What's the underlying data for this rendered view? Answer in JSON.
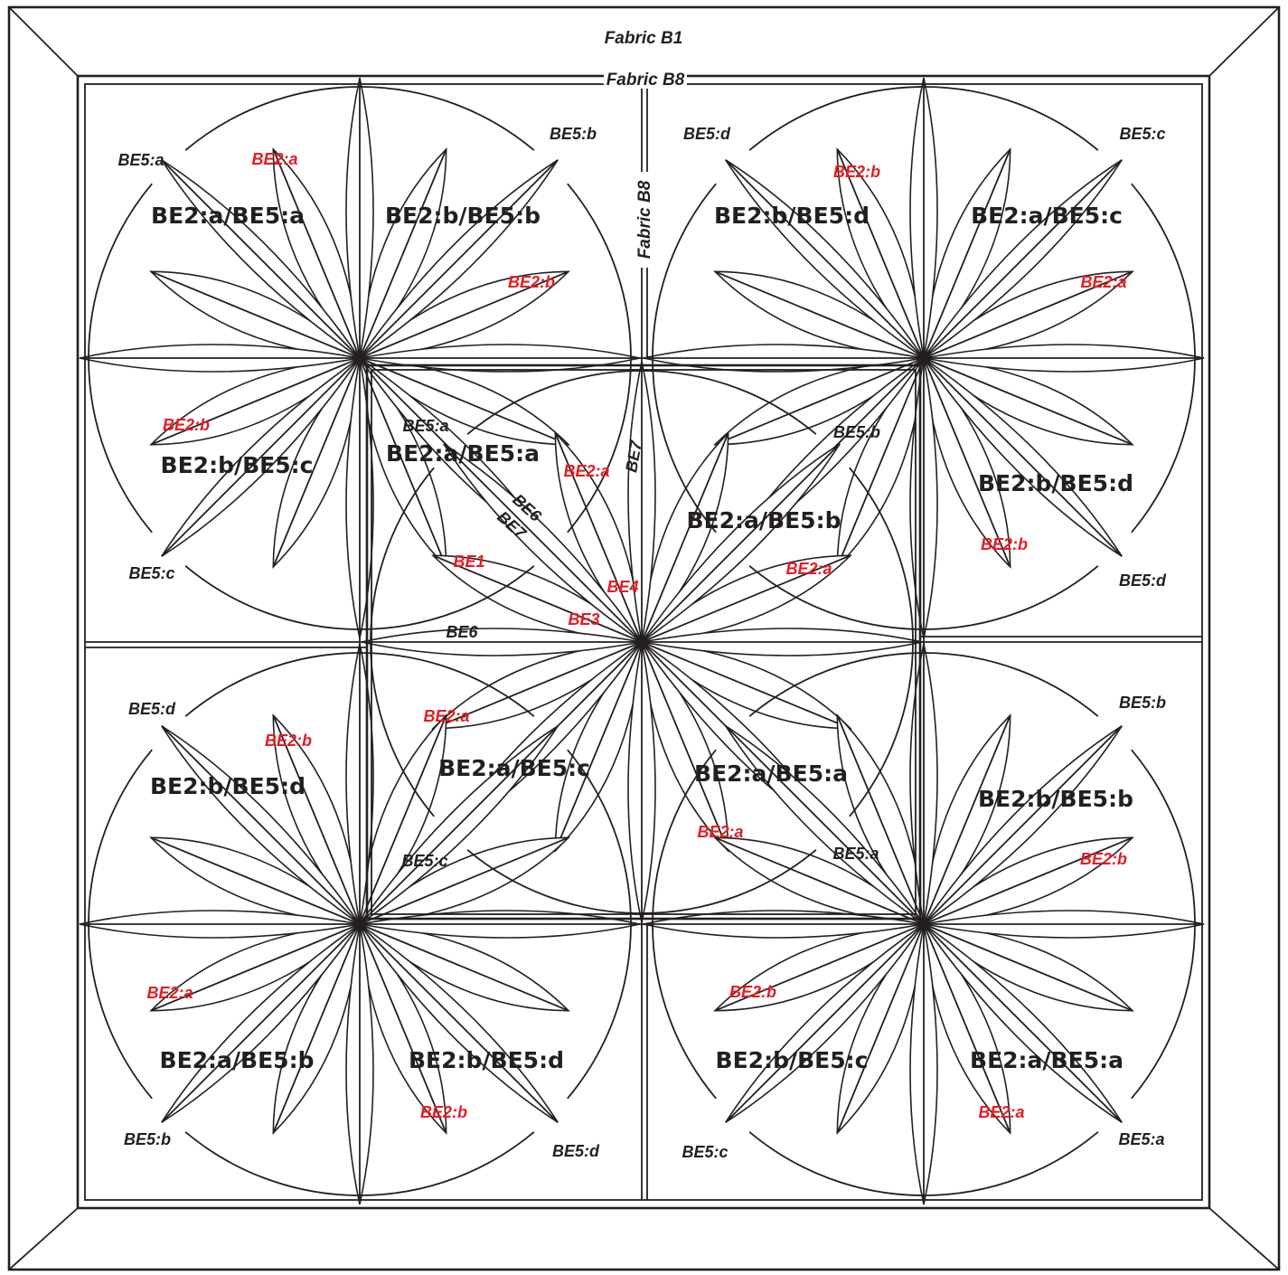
{
  "border": {
    "outer_fabric": "Fabric B1",
    "sashing_fabric_top": "Fabric B8",
    "sashing_fabric_vertical": "Fabric B8"
  },
  "blocks": [
    {
      "id": "r1c1",
      "title": "BE2:a/BE5:a",
      "be5": "BE5:a",
      "be2": "BE2:a"
    },
    {
      "id": "r1c2",
      "title": "BE2:b/BE5:b",
      "be5": "BE5:b",
      "be2": "BE2:b"
    },
    {
      "id": "r1c3",
      "title": "BE2:b/BE5:d",
      "be5": "BE5:d",
      "be2": "BE2:b"
    },
    {
      "id": "r1c4",
      "title": "BE2:a/BE5:c",
      "be5": "BE5:c",
      "be2": "BE2:a"
    },
    {
      "id": "r2c1",
      "title": "BE2:b/BE5:c",
      "be5": "BE5:c",
      "be2": "BE2:b"
    },
    {
      "id": "r2c4",
      "title": "BE2:b/BE5:d",
      "be5": "BE5:d",
      "be2": "BE2:b"
    },
    {
      "id": "r3c1",
      "title": "BE2:b/BE5:d",
      "be5": "BE5:d",
      "be2": "BE2:b"
    },
    {
      "id": "r3c4",
      "title": "BE2:b/BE5:b",
      "be5": "BE5:b",
      "be2": "BE2:b"
    },
    {
      "id": "r4c1",
      "title": "BE2:a/BE5:b",
      "be5": "BE5:b",
      "be2": "BE2:a"
    },
    {
      "id": "r4c2",
      "title": "BE2:b/BE5:d",
      "be5": "BE5:d",
      "be2": "BE2:b"
    },
    {
      "id": "r4c3",
      "title": "BE2:b/BE5:c",
      "be5": "BE5:c",
      "be2": "BE2:b"
    },
    {
      "id": "r4c4",
      "title": "BE2:a/BE5:a",
      "be5": "BE5:a",
      "be2": "BE2:a"
    }
  ],
  "center": {
    "quadrants": [
      {
        "id": "tl",
        "title": "BE2:a/BE5:a",
        "be5": "BE5:a",
        "be2": "BE2:a"
      },
      {
        "id": "tr",
        "title": "BE2:a/BE5:b",
        "be5": "BE5:b",
        "be2": "BE2:a"
      },
      {
        "id": "bl",
        "title": "BE2:a/BE5:c",
        "be5": "BE5:c",
        "be2": "BE2:a"
      },
      {
        "id": "br",
        "title": "BE2:a/BE5:a",
        "be5": "BE5:a",
        "be2": "BE2:a"
      }
    ],
    "piece_labels": {
      "be1": "BE1",
      "be3": "BE3",
      "be4": "BE4",
      "be6_a": "BE6",
      "be6_b": "BE6",
      "be7_a": "BE7",
      "be7_b": "BE7"
    }
  }
}
